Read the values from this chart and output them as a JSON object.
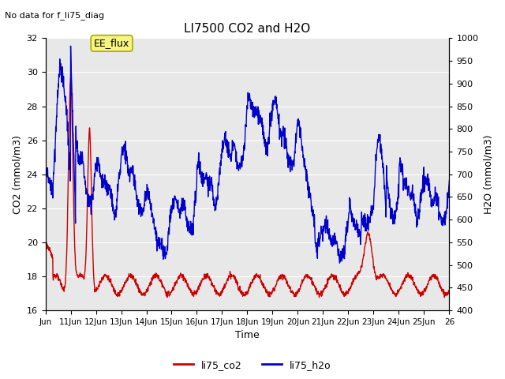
{
  "title": "LI7500 CO2 and H2O",
  "top_left_text": "No data for f_li75_diag",
  "annotation_box": "EE_flux",
  "xlabel": "Time",
  "ylabel_left": "CO2 (mmol/m3)",
  "ylabel_right": "H2O (mmol/m3)",
  "ylim_left": [
    16,
    32
  ],
  "ylim_right": [
    400,
    1000
  ],
  "xlim": [
    0,
    16
  ],
  "xtick_labels": [
    "Jun",
    "11Jun",
    "12Jun",
    "13Jun",
    "14Jun",
    "15Jun",
    "16Jun",
    "17Jun",
    "18Jun",
    "19Jun",
    "20Jun",
    "21Jun",
    "22Jun",
    "23Jun",
    "24Jun",
    "25Jun",
    "26"
  ],
  "yticks_left": [
    16,
    18,
    20,
    22,
    24,
    26,
    28,
    30,
    32
  ],
  "yticks_right": [
    400,
    450,
    500,
    550,
    600,
    650,
    700,
    750,
    800,
    850,
    900,
    950,
    1000
  ],
  "plot_bg_color": "#e8e8e8",
  "grid_color": "#ffffff",
  "co2_color": "#cc0000",
  "h2o_color": "#0000cc",
  "line_width": 1.0,
  "legend_labels": [
    "li75_co2",
    "li75_h2o"
  ],
  "figsize": [
    6.4,
    4.8
  ],
  "dpi": 100
}
